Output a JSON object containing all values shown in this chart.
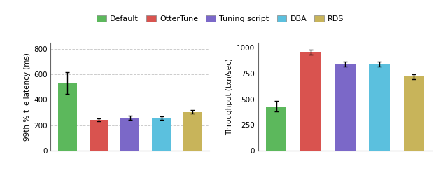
{
  "categories": [
    "Default",
    "OtterTune",
    "Tuning script",
    "DBA",
    "RDS"
  ],
  "colors": [
    "#5cb85c",
    "#d9534f",
    "#7b68c8",
    "#5bc0de",
    "#c8b45a"
  ],
  "latency_values": [
    530,
    242,
    258,
    255,
    305
  ],
  "latency_errors": [
    85,
    12,
    15,
    12,
    12
  ],
  "throughput_values": [
    430,
    960,
    840,
    840,
    720
  ],
  "throughput_errors": [
    50,
    25,
    25,
    25,
    22
  ],
  "latency_ylabel": "99th %-tile latency (ms)",
  "throughput_ylabel": "Throughput (txn/sec)",
  "latency_ylim": [
    0,
    850
  ],
  "latency_yticks": [
    0,
    200,
    400,
    600,
    800
  ],
  "throughput_ylim": [
    0,
    1050
  ],
  "throughput_yticks": [
    0,
    250,
    500,
    750,
    1000
  ],
  "legend_labels": [
    "Default",
    "OtterTune",
    "Tuning script",
    "DBA",
    "RDS"
  ]
}
